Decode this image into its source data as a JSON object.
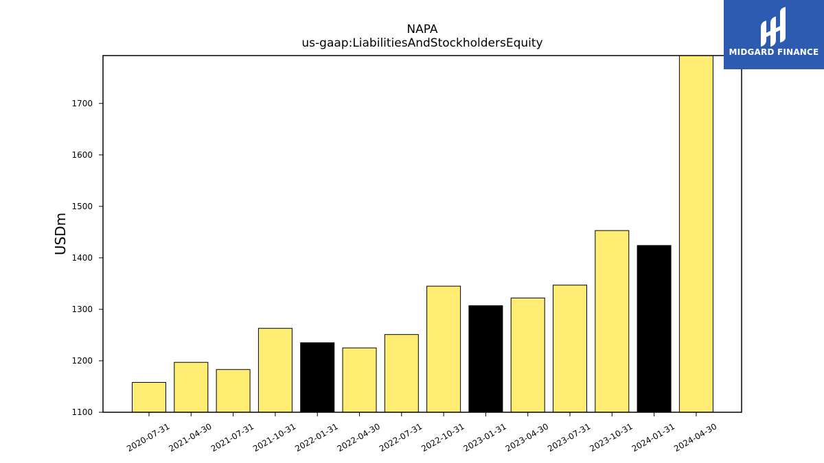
{
  "chart_data": {
    "type": "bar",
    "title": "NAPA",
    "subtitle": "us-gaap:LiabilitiesAndStockholdersEquity",
    "xlabel": "",
    "ylabel": "USDm",
    "ylim": [
      1100,
      1793
    ],
    "yticks": [
      1100,
      1200,
      1300,
      1400,
      1500,
      1600,
      1700
    ],
    "grid": false,
    "categories": [
      "2020-07-31",
      "2021-04-30",
      "2021-07-31",
      "2021-10-31",
      "2022-01-31",
      "2022-04-30",
      "2022-07-31",
      "2022-10-31",
      "2023-01-31",
      "2023-04-30",
      "2023-07-31",
      "2023-10-31",
      "2024-01-31",
      "2024-04-30"
    ],
    "values": [
      1158,
      1197,
      1183,
      1263,
      1235,
      1225,
      1251,
      1345,
      1307,
      1322,
      1347,
      1453,
      1424,
      1793
    ],
    "bar_colors": [
      "#ffec73",
      "#ffec73",
      "#ffec73",
      "#ffec73",
      "#000000",
      "#ffec73",
      "#ffec73",
      "#ffec73",
      "#000000",
      "#ffec73",
      "#ffec73",
      "#ffec73",
      "#000000",
      "#ffec73"
    ]
  },
  "logo": {
    "text": "MIDGARD FINANCE",
    "background": "#2d5bb0"
  }
}
